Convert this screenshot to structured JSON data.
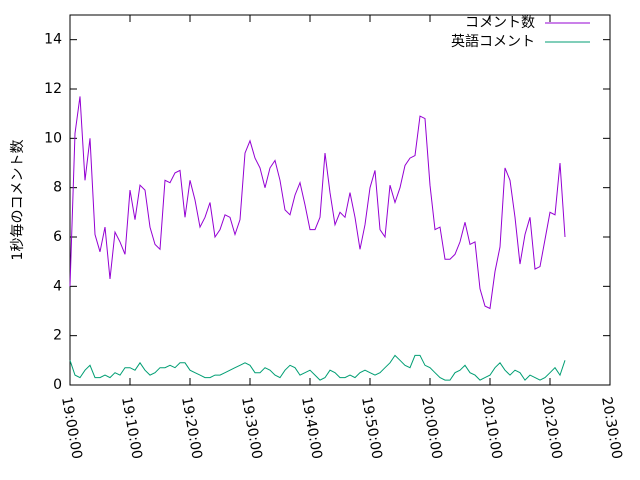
{
  "chart_data": {
    "type": "line",
    "y_label": "1秒毎のコメント数",
    "x": [
      "19:00:00",
      "19:00:50",
      "19:01:40",
      "19:02:30",
      "19:03:20",
      "19:04:10",
      "19:05:00",
      "19:05:50",
      "19:06:40",
      "19:07:30",
      "19:08:20",
      "19:09:10",
      "19:10:00",
      "19:10:50",
      "19:11:40",
      "19:12:30",
      "19:13:20",
      "19:14:10",
      "19:15:00",
      "19:15:50",
      "19:16:40",
      "19:17:30",
      "19:18:20",
      "19:19:10",
      "19:20:00",
      "19:20:50",
      "19:21:40",
      "19:22:30",
      "19:23:20",
      "19:24:10",
      "19:25:00",
      "19:25:50",
      "19:26:40",
      "19:27:30",
      "19:28:20",
      "19:29:10",
      "19:30:00",
      "19:30:50",
      "19:31:40",
      "19:32:30",
      "19:33:20",
      "19:34:10",
      "19:35:00",
      "19:35:50",
      "19:36:40",
      "19:37:30",
      "19:38:20",
      "19:39:10",
      "19:40:00",
      "19:40:50",
      "19:41:40",
      "19:42:30",
      "19:43:20",
      "19:44:10",
      "19:45:00",
      "19:45:50",
      "19:46:40",
      "19:47:30",
      "19:48:20",
      "19:49:10",
      "19:50:00",
      "19:50:50",
      "19:51:40",
      "19:52:30",
      "19:53:20",
      "19:54:10",
      "19:55:00",
      "19:55:50",
      "19:56:40",
      "19:57:30",
      "19:58:20",
      "19:59:10",
      "20:00:00",
      "20:00:50",
      "20:01:40",
      "20:02:30",
      "20:03:20",
      "20:04:10",
      "20:05:00",
      "20:05:50",
      "20:06:40",
      "20:07:30",
      "20:08:20",
      "20:09:10",
      "20:10:00",
      "20:10:50",
      "20:11:40",
      "20:12:30",
      "20:13:20",
      "20:14:10",
      "20:15:00",
      "20:15:50",
      "20:16:40",
      "20:17:30",
      "20:18:20",
      "20:19:10",
      "20:20:00",
      "20:20:50",
      "20:21:40",
      "20:22:30"
    ],
    "series": [
      {
        "name": "コメント数",
        "color": "#9400d3",
        "values": [
          4.0,
          10.2,
          11.7,
          8.3,
          10.0,
          6.1,
          5.4,
          6.4,
          4.3,
          6.2,
          5.8,
          5.3,
          7.9,
          6.7,
          8.1,
          7.9,
          6.4,
          5.7,
          5.5,
          8.3,
          8.2,
          8.6,
          8.7,
          6.8,
          8.3,
          7.5,
          6.4,
          6.8,
          7.4,
          6.0,
          6.3,
          6.9,
          6.8,
          6.1,
          6.7,
          9.4,
          9.9,
          9.2,
          8.8,
          8.0,
          8.8,
          9.1,
          8.3,
          7.1,
          6.9,
          7.7,
          8.2,
          7.3,
          6.3,
          6.3,
          6.8,
          9.4,
          7.8,
          6.5,
          7.0,
          6.8,
          7.8,
          6.8,
          5.5,
          6.5,
          8.0,
          8.7,
          6.3,
          6.0,
          8.1,
          7.4,
          8.0,
          8.9,
          9.2,
          9.3,
          10.9,
          10.8,
          8.1,
          6.3,
          6.4,
          5.1,
          5.1,
          5.3,
          5.8,
          6.6,
          5.7,
          5.8,
          3.9,
          3.2,
          3.1,
          4.6,
          5.6,
          8.8,
          8.3,
          6.8,
          4.9,
          6.1,
          6.8,
          4.7,
          4.8,
          5.9,
          7.0,
          6.9,
          9.0,
          6.0
        ]
      },
      {
        "name": "英語コメント",
        "color": "#009e73",
        "values": [
          1.0,
          0.4,
          0.3,
          0.6,
          0.8,
          0.3,
          0.3,
          0.4,
          0.3,
          0.5,
          0.4,
          0.7,
          0.7,
          0.6,
          0.9,
          0.6,
          0.4,
          0.5,
          0.7,
          0.7,
          0.8,
          0.7,
          0.9,
          0.9,
          0.6,
          0.5,
          0.4,
          0.3,
          0.3,
          0.4,
          0.4,
          0.5,
          0.6,
          0.7,
          0.8,
          0.9,
          0.8,
          0.5,
          0.5,
          0.7,
          0.6,
          0.4,
          0.3,
          0.6,
          0.8,
          0.7,
          0.4,
          0.5,
          0.6,
          0.4,
          0.2,
          0.3,
          0.6,
          0.5,
          0.3,
          0.3,
          0.4,
          0.3,
          0.5,
          0.6,
          0.5,
          0.4,
          0.5,
          0.7,
          0.9,
          1.2,
          1.0,
          0.8,
          0.7,
          1.2,
          1.2,
          0.8,
          0.7,
          0.5,
          0.3,
          0.2,
          0.2,
          0.5,
          0.6,
          0.8,
          0.5,
          0.4,
          0.2,
          0.3,
          0.4,
          0.7,
          0.9,
          0.6,
          0.4,
          0.6,
          0.5,
          0.2,
          0.4,
          0.3,
          0.2,
          0.3,
          0.5,
          0.7,
          0.4,
          1.0
        ]
      }
    ],
    "xlim": [
      "19:00:00",
      "20:30:00"
    ],
    "xticks": [
      "19:00:00",
      "19:10:00",
      "19:20:00",
      "19:30:00",
      "19:40:00",
      "19:50:00",
      "20:00:00",
      "20:10:00",
      "20:20:00",
      "20:30:00"
    ],
    "ylim": [
      0,
      15
    ],
    "yticks": [
      0,
      2,
      4,
      6,
      8,
      10,
      12,
      14
    ],
    "legend": "top-right"
  }
}
